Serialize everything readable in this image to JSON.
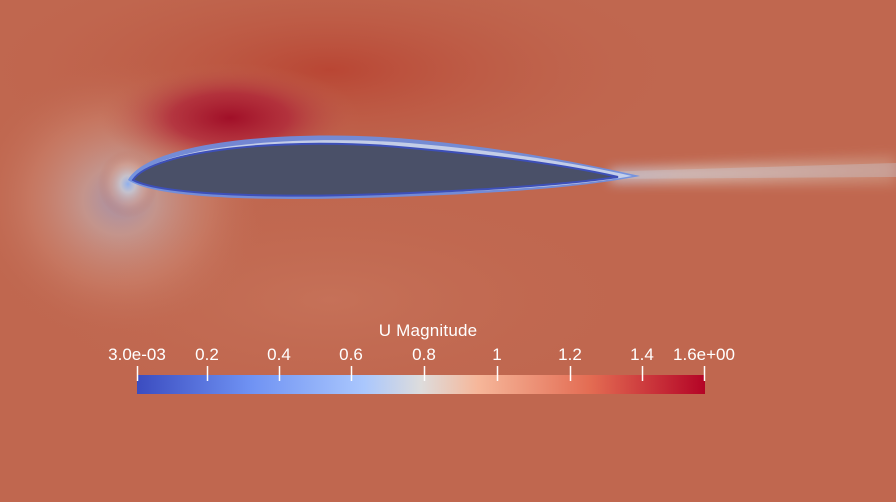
{
  "colormap": {
    "title": "U Magnitude",
    "tick_labels": [
      "3.0e-03",
      "0.2",
      "0.4",
      "0.6",
      "0.8",
      "1",
      "1.2",
      "1.4",
      "1.6e+00"
    ],
    "range": [
      0.003,
      1.6
    ],
    "colors": {
      "low": "#3b4cc0",
      "mid": "#dddcdc",
      "high": "#b40426"
    }
  },
  "scene": {
    "background_color": "#c0674f",
    "airfoil_color": "#4a5068"
  }
}
